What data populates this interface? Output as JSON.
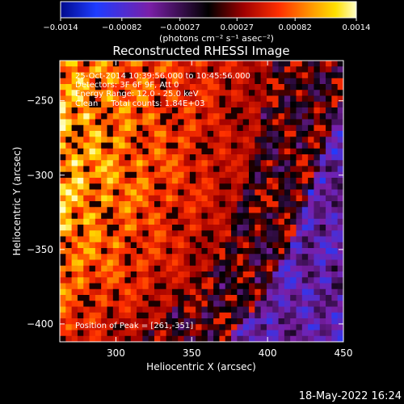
{
  "chart_data": {
    "type": "heatmap",
    "title": "Reconstructed RHESSI Image",
    "xlabel": "Heliocentric X (arcsec)",
    "ylabel": "Heliocentric Y (arcsec)",
    "xlim": [
      263,
      450
    ],
    "ylim": [
      -412,
      -223
    ],
    "x_ticks": [
      300,
      350,
      400,
      450
    ],
    "x_tick_labels": [
      "300",
      "350",
      "400",
      "450"
    ],
    "y_ticks": [
      -250,
      -300,
      -350,
      -400
    ],
    "y_tick_labels": [
      "−250",
      "−300",
      "−350",
      "−400"
    ],
    "colorbar": {
      "ticks": [
        -0.0014,
        -0.00082,
        -0.00027,
        0.00027,
        0.00082,
        0.0014
      ],
      "tick_labels": [
        "−0.0014",
        "−0.00082",
        "−0.00027",
        "0.00027",
        "0.00082",
        "0.0014"
      ],
      "units": "(photons cm⁻² s⁻¹ asec⁻²)",
      "range": [
        -0.0014,
        0.0014
      ],
      "colors": [
        "#000a8c",
        "#1e3cff",
        "#7a1fa8",
        "#000000",
        "#a00000",
        "#ff3000",
        "#ff9a00",
        "#ffe000",
        "#ffffc8"
      ]
    },
    "annotations": [
      "25-Oct-2014 10:39:56.000 to 10:45:56.000",
      "Detectors: 3F 6F 9F, Att 0",
      "Energy Range: 12.0 - 25.0 keV",
      "Clean     Total counts: 1.84E+03"
    ],
    "peak_label": "Position of Peak = [261,-351]",
    "grid": false
  },
  "footer": {
    "timestamp": "18-May-2022 16:24"
  }
}
